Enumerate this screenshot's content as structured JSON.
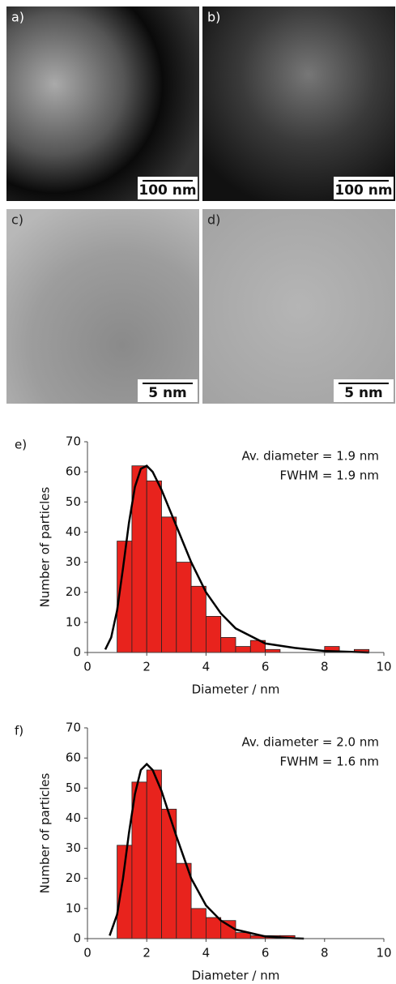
{
  "panels": [
    {
      "label": "a)",
      "scale_bar": "100 nm"
    },
    {
      "label": "b)",
      "scale_bar": "100 nm"
    },
    {
      "label": "c)",
      "scale_bar": "5 nm"
    },
    {
      "label": "d)",
      "scale_bar": "5 nm"
    }
  ],
  "chart_data": [
    {
      "type": "histogram",
      "panel_label": "e)",
      "x_label": "Diameter / nm",
      "y_label": "Number of particles",
      "annotations": [
        "Av. diameter = 1.9 nm",
        "FWHM = 1.9 nm"
      ],
      "bins": [
        1.0,
        1.5,
        2.0,
        2.5,
        3.0,
        3.5,
        4.0,
        4.5,
        5.0,
        5.5,
        6.0,
        6.5,
        7.0,
        7.5,
        8.0,
        8.5,
        9.0,
        9.5
      ],
      "values": [
        37,
        62,
        57,
        45,
        30,
        22,
        12,
        5,
        2,
        4,
        1,
        0,
        0,
        0,
        2,
        0,
        1
      ],
      "color": "#e8231d",
      "fit": {
        "x": [
          0.6,
          0.8,
          1.0,
          1.2,
          1.4,
          1.6,
          1.8,
          2.0,
          2.2,
          2.5,
          3.0,
          3.5,
          4.0,
          4.5,
          5.0,
          6.0,
          7.0,
          8.0,
          9.5
        ],
        "values": [
          1,
          5,
          14,
          28,
          43,
          55,
          61,
          62,
          60,
          54,
          42,
          30,
          20,
          13,
          8,
          3,
          1.5,
          0.5,
          0
        ]
      },
      "xlim": [
        0,
        10
      ],
      "xticks": [
        0,
        2,
        4,
        6,
        8,
        10
      ],
      "ylim": [
        0,
        70
      ],
      "yticks": [
        0,
        10,
        20,
        30,
        40,
        50,
        60,
        70
      ]
    },
    {
      "type": "histogram",
      "panel_label": "f)",
      "x_label": "Diameter / nm",
      "y_label": "Number of particles",
      "annotations": [
        "Av. diameter = 2.0 nm",
        "FWHM = 1.6 nm"
      ],
      "bins": [
        1.0,
        1.5,
        2.0,
        2.5,
        3.0,
        3.5,
        4.0,
        4.5,
        5.0,
        5.5,
        6.0,
        6.5,
        7.0
      ],
      "values": [
        31,
        52,
        56,
        43,
        25,
        10,
        7,
        6,
        2,
        1,
        1,
        1
      ],
      "color": "#e8231d",
      "fit": {
        "x": [
          0.75,
          1.0,
          1.2,
          1.4,
          1.6,
          1.8,
          2.0,
          2.2,
          2.5,
          3.0,
          3.5,
          4.0,
          4.5,
          5.0,
          6.0,
          7.0,
          7.3
        ],
        "values": [
          1,
          8,
          20,
          35,
          48,
          56,
          58,
          56,
          49,
          34,
          20,
          11,
          6,
          3,
          0.7,
          0.1,
          0
        ]
      },
      "xlim": [
        0,
        10
      ],
      "xticks": [
        0,
        2,
        4,
        6,
        8,
        10
      ],
      "ylim": [
        0,
        70
      ],
      "yticks": [
        0,
        10,
        20,
        30,
        40,
        50,
        60,
        70
      ]
    }
  ]
}
